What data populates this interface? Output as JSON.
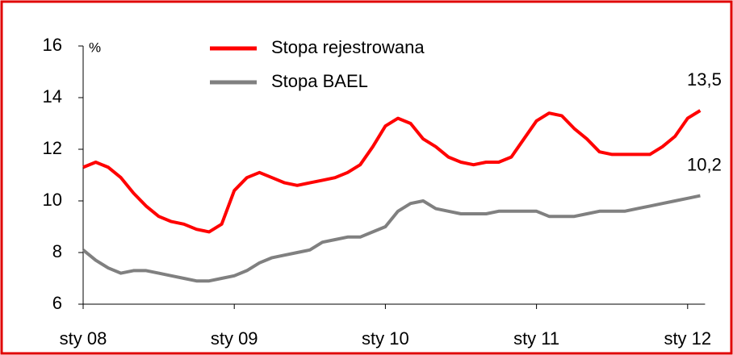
{
  "chart_data": {
    "type": "line",
    "y_axis_label": "%",
    "categories": [
      "sty 08",
      null,
      null,
      null,
      null,
      null,
      null,
      null,
      null,
      null,
      null,
      null,
      "sty 09",
      null,
      null,
      null,
      null,
      null,
      null,
      null,
      null,
      null,
      null,
      null,
      "sty 10",
      null,
      null,
      null,
      null,
      null,
      null,
      null,
      null,
      null,
      null,
      null,
      "sty 11",
      null,
      null,
      null,
      null,
      null,
      null,
      null,
      null,
      null,
      null,
      null,
      "sty 12",
      null
    ],
    "series": [
      {
        "name": "Stopa rejestrowana",
        "color": "#ff0000",
        "end_label": "13,5",
        "values": [
          11.3,
          11.5,
          11.3,
          10.9,
          10.3,
          9.8,
          9.4,
          9.2,
          9.1,
          8.9,
          8.8,
          9.1,
          10.4,
          10.9,
          11.1,
          10.9,
          10.7,
          10.6,
          10.7,
          10.8,
          10.9,
          11.1,
          11.4,
          12.1,
          12.9,
          13.2,
          13.0,
          12.4,
          12.1,
          11.7,
          11.5,
          11.4,
          11.5,
          11.5,
          11.7,
          12.4,
          13.1,
          13.4,
          13.3,
          12.8,
          12.4,
          11.9,
          11.8,
          11.8,
          11.8,
          11.8,
          12.1,
          12.5,
          13.2,
          13.5
        ]
      },
      {
        "name": "Stopa BAEL",
        "color": "#808080",
        "end_label": "10,2",
        "values": [
          8.1,
          7.7,
          7.4,
          7.2,
          7.3,
          7.3,
          7.2,
          7.1,
          7.0,
          6.9,
          6.9,
          7.0,
          7.1,
          7.3,
          7.6,
          7.8,
          7.9,
          8.0,
          8.1,
          8.4,
          8.5,
          8.6,
          8.6,
          8.8,
          9.0,
          9.6,
          9.9,
          10.0,
          9.7,
          9.6,
          9.5,
          9.5,
          9.5,
          9.6,
          9.6,
          9.6,
          9.6,
          9.4,
          9.4,
          9.4,
          9.5,
          9.6,
          9.6,
          9.6,
          9.7,
          9.8,
          9.9,
          10.0,
          10.1,
          10.2
        ]
      }
    ],
    "ylim": [
      6,
      16
    ],
    "yticks": [
      6,
      8,
      10,
      12,
      14,
      16
    ],
    "legend": "top-left"
  }
}
